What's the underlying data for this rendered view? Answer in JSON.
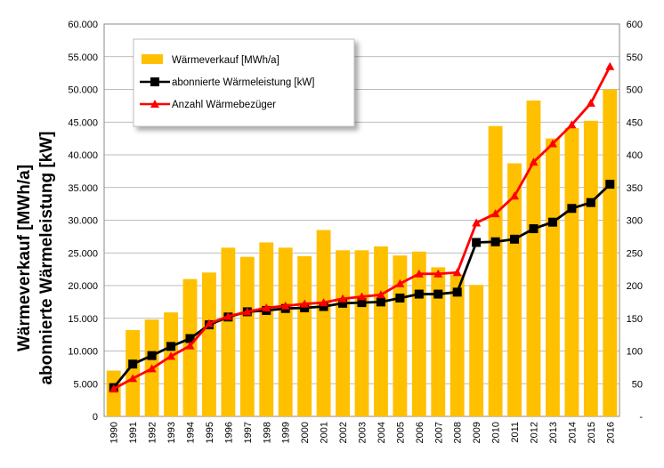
{
  "chart_data": {
    "type": "bar",
    "categories": [
      "1990",
      "1991",
      "1992",
      "1993",
      "1994",
      "1995",
      "1996",
      "1997",
      "1998",
      "1999",
      "2000",
      "2001",
      "2002",
      "2003",
      "2004",
      "2005",
      "2006",
      "2007",
      "2008",
      "2009",
      "2010",
      "2011",
      "2012",
      "2013",
      "2014",
      "2015",
      "2016"
    ],
    "series": [
      {
        "name": "Wärmeverkauf [MWh/a]",
        "type": "bar",
        "axis": "left",
        "color": "#FFC000",
        "values": [
          7000,
          13200,
          14800,
          15900,
          21000,
          22000,
          25800,
          24400,
          26600,
          25800,
          24500,
          28500,
          25400,
          25400,
          26000,
          24600,
          25200,
          22800,
          21700,
          20100,
          44400,
          38700,
          48300,
          42500,
          44100,
          45200,
          50000
        ]
      },
      {
        "name": "abonnierte Wärmeleistung [kW]",
        "type": "line",
        "axis": "left",
        "color": "#000000",
        "marker": "square",
        "values": [
          4400,
          8000,
          9300,
          10700,
          11900,
          14000,
          15200,
          16000,
          16200,
          16500,
          16600,
          16800,
          17300,
          17400,
          17500,
          18100,
          18700,
          18700,
          19000,
          26600,
          26700,
          27100,
          28700,
          29700,
          31800,
          32700,
          35500
        ]
      },
      {
        "name": "Anzahl Wärmebezüger",
        "type": "line",
        "axis": "right",
        "color": "#FF0000",
        "marker": "triangle",
        "values": [
          42,
          58,
          73,
          92,
          108,
          142,
          153,
          160,
          166,
          169,
          172,
          174,
          180,
          183,
          186,
          203,
          218,
          218,
          220,
          296,
          310,
          337,
          389,
          417,
          446,
          479,
          535
        ]
      }
    ],
    "left_axis": {
      "label_line1": "Wärmeverkauf [MWh/a]",
      "label_line2": "abonnierte Wärmeleistung [kW]",
      "ylim": [
        0,
        60000
      ],
      "ticks": [
        "0",
        "5.000",
        "10.000",
        "15.000",
        "20.000",
        "25.000",
        "30.000",
        "35.000",
        "40.000",
        "45.000",
        "50.000",
        "55.000",
        "60.000"
      ]
    },
    "right_axis": {
      "ylim": [
        0,
        600
      ],
      "ticks": [
        "-",
        "50",
        "100",
        "150",
        "200",
        "250",
        "300",
        "350",
        "400",
        "450",
        "500",
        "550",
        "600"
      ]
    },
    "legend_position": "top-left"
  }
}
